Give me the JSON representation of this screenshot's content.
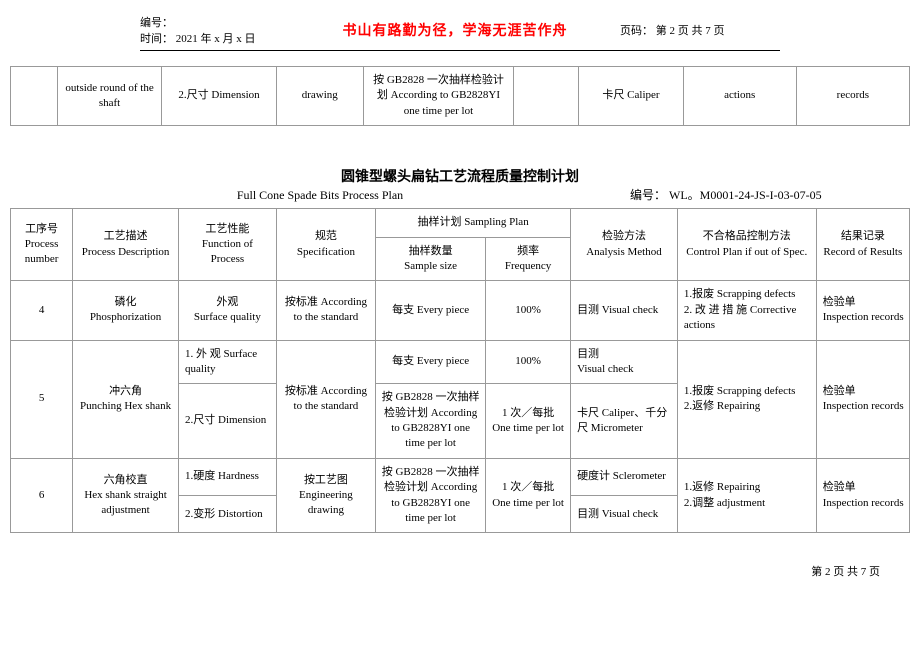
{
  "header": {
    "bianhao_label": "编号：",
    "shijian_label": "时间：",
    "shijian_value": "2021 年 x 月 x 日",
    "motto": "书山有路勤为径，学海无涯苦作舟",
    "page_label": "页码：",
    "page_value": "第 2 页 共 7 页"
  },
  "top_table": {
    "c1": "outside round of the shaft",
    "c2": "2.尺寸 Dimension",
    "c3": "drawing",
    "c4": "按 GB2828 一次抽样检验计划 According to GB2828YI   one time per lot",
    "c5": "",
    "c6": "卡尺 Caliper",
    "c7": "actions",
    "c8": "records"
  },
  "main_title": {
    "zh": "圆锥型螺头扁钻工艺流程质量控制计划",
    "en": "Full Cone Spade Bits Process Plan",
    "code_label": "编号：",
    "code_value": "WL。M0001-24-JS-I-03-07-05"
  },
  "main_table": {
    "headers": {
      "process_no": "工序号\nProcess number",
      "process_desc": "工艺描述\nProcess Description",
      "function": "工艺性能\nFunction of Process",
      "spec": "规范\nSpecification",
      "sampling_plan": "抽样计划 Sampling Plan",
      "sample_size": "抽样数量\nSample size",
      "frequency": "频率\nFrequency",
      "analysis": "检验方法\nAnalysis Method",
      "control_plan": "不合格品控制方法\nControl Plan if out of Spec.",
      "results": "结果记录\nRecord of Results"
    },
    "rows": [
      {
        "no": "4",
        "desc": "磷化\nPhosphorization",
        "func": "外观\nSurface quality",
        "spec": "按标准 According to the standard",
        "size": "每支 Every piece",
        "freq": "100%",
        "analysis": "目测 Visual check",
        "control": "1.报废 Scrapping defects\n2. 改 进 措 施 Corrective actions",
        "results": "检验单 Inspection records"
      },
      {
        "no": "5",
        "desc": "冲六角\nPunching Hex shank",
        "func1": "1. 外 观  Surface quality",
        "func2": "2.尺寸 Dimension",
        "spec": "按标准  According to the standard",
        "size1": "每支 Every piece",
        "freq1": "100%",
        "size2": "按 GB2828 一次抽样检验计划 According to GB2828YI   one time per lot",
        "freq2": "1 次／每批\nOne time per lot",
        "analysis1": "目测\nVisual check",
        "analysis2": "卡尺 Caliper、千分尺 Micrometer",
        "control": "1.报废 Scrapping defects\n2.返修 Repairing",
        "results": "检验单 Inspection records"
      },
      {
        "no": "6",
        "desc": "六角校直\nHex shank straight adjustment",
        "func1": "1.硬度 Hardness",
        "func2": "2.变形 Distortion",
        "spec": "按工艺图 Engineering drawing",
        "size": "按 GB2828 一次抽样检验计划 According to GB2828YI   one time per lot",
        "freq": "1 次／每批\nOne time per lot",
        "analysis1": "硬度计 Sclerometer",
        "analysis2": "目测 Visual check",
        "control": "1.返修 Repairing\n2.调整 adjustment",
        "results": "检验单 Inspection records"
      }
    ]
  },
  "footer": "第 2 页 共 7 页"
}
